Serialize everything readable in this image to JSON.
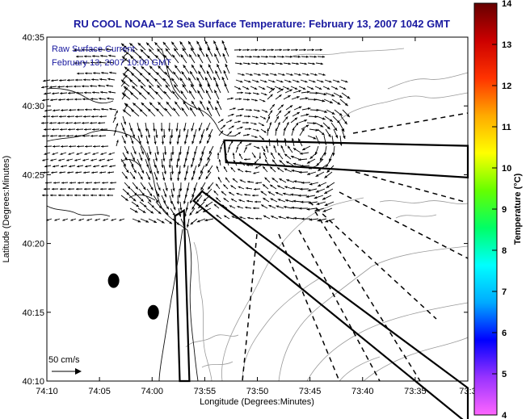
{
  "chart_data": {
    "type": "vector-field",
    "title": "RU COOL  NOAA−12  Sea Surface Temperature:  February 13, 2007 1042 GMT",
    "xlabel": "Longitude (Degrees:Minutes)",
    "ylabel": "Latitude (Degrees:Minutes)",
    "x_ticks": [
      "74:10",
      "74:05",
      "74:00",
      "73:55",
      "73:50",
      "73:45",
      "73:40",
      "73:35",
      "73:3"
    ],
    "y_ticks": [
      "40:10",
      "40:15",
      "40:20",
      "40:25",
      "40:30",
      "40:35"
    ],
    "xlim_min": [
      -70,
      0
    ],
    "ylim_min": [
      0,
      25
    ],
    "annotation_title": "Raw Surface Current",
    "annotation_time": "February 13, 2007 10:00 GMT",
    "scale_label": "50 cm/s",
    "scale_cm_s": 50,
    "colorbar": {
      "label": "Temperature (°C)",
      "range": [
        4,
        14
      ],
      "ticks": [
        "4",
        "5",
        "6",
        "7",
        "8",
        "9",
        "10",
        "11",
        "12",
        "13",
        "14"
      ],
      "colors": [
        "#ff66ff",
        "#9933ff",
        "#0000ff",
        "#00aaff",
        "#00ffff",
        "#00ff66",
        "#66ff00",
        "#ffff00",
        "#ffaa00",
        "#ff3300",
        "#cc0000",
        "#660000"
      ]
    },
    "markers_lonlat_min": [
      {
        "x": -58.9,
        "y": 7.3
      },
      {
        "x": -52.3,
        "y": 5.0
      }
    ],
    "boxes_lonlat_min": [
      [
        [
          -40.5,
          17.5
        ],
        [
          0,
          17.1
        ],
        [
          0,
          14.8
        ],
        [
          -40.2,
          15.9
        ]
      ],
      [
        [
          -45.6,
          13.1
        ],
        [
          0,
          -3.1
        ],
        [
          0,
          -0.5
        ],
        [
          -44.2,
          13.8
        ]
      ],
      [
        [
          -47.9,
          0
        ],
        [
          -48.7,
          12.0
        ],
        [
          -47.2,
          12.4
        ],
        [
          -46.3,
          0
        ]
      ]
    ],
    "colors": {
      "title": "#1a1aa0",
      "arrow": "#000000",
      "coast": "#111111",
      "bathy": "#999999"
    }
  }
}
